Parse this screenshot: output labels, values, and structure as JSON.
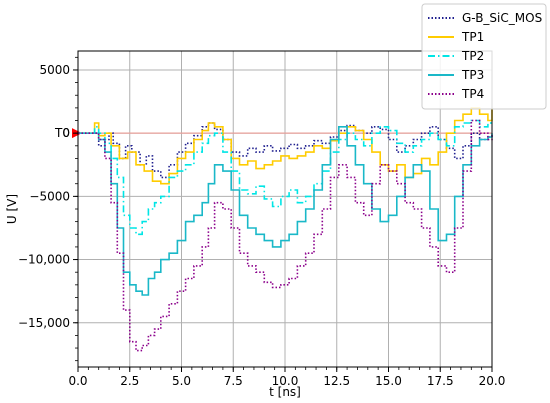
{
  "chart_data": {
    "type": "line",
    "xlabel": "t [ns]",
    "ylabel": "U [V]",
    "xlim": [
      0,
      20
    ],
    "ylim": [
      -18500,
      6500
    ],
    "xticks": [
      0,
      2.5,
      5,
      7.5,
      10,
      12.5,
      15,
      17.5,
      20
    ],
    "xtick_labels": [
      "0.0",
      "2.5",
      "5.0",
      "7.5",
      "10.0",
      "12.5",
      "15.0",
      "17.5",
      "20.0"
    ],
    "yticks": [
      5000,
      0,
      -5000,
      -10000,
      -15000
    ],
    "ytick_labels": [
      "5000",
      "0",
      "−5000",
      "−10,000",
      "−15,000"
    ],
    "grid": true,
    "legend_position": "top-right",
    "reference_line": {
      "y": 0,
      "label": "T0",
      "color": "#e8a09a",
      "marker_color": "#ff0000"
    },
    "series": [
      {
        "name": "G-B_SiC_MOS",
        "color": "#1f1f8f",
        "dash": "dotted",
        "x": [
          0,
          0.8,
          1.0,
          1.3,
          1.5,
          1.7,
          2.0,
          2.3,
          2.6,
          3.0,
          3.3,
          3.6,
          4.0,
          4.4,
          4.8,
          5.2,
          5.6,
          6.0,
          6.3,
          6.6,
          7.0,
          7.4,
          7.8,
          8.2,
          8.6,
          9.0,
          9.4,
          9.8,
          10.2,
          10.6,
          11.0,
          11.4,
          11.8,
          12.2,
          12.6,
          13.0,
          13.4,
          13.8,
          14.2,
          14.6,
          15.0,
          15.4,
          15.8,
          16.2,
          16.6,
          17.0,
          17.4,
          17.8,
          18.2,
          18.6,
          19.0,
          19.4,
          19.8,
          20.0
        ],
        "values": [
          0,
          0,
          -1000,
          -500,
          0,
          -800,
          -2000,
          -1000,
          -1500,
          -2500,
          -1800,
          -3000,
          -3500,
          -2500,
          -1500,
          -800,
          -200,
          500,
          800,
          300,
          -500,
          -1500,
          -1800,
          -1200,
          -1500,
          -1000,
          -1400,
          -1200,
          -900,
          -1200,
          -1000,
          -600,
          -800,
          -300,
          200,
          600,
          200,
          0,
          500,
          300,
          -500,
          -1500,
          -1000,
          -500,
          0,
          500,
          -500,
          -1200,
          -2000,
          -1000,
          0,
          -500,
          -300,
          0
        ]
      },
      {
        "name": "TP1",
        "color": "#ffcc00",
        "dash": "solid",
        "x": [
          0,
          0.8,
          1.0,
          1.3,
          1.6,
          2.0,
          2.4,
          2.8,
          3.2,
          3.6,
          4.0,
          4.4,
          4.8,
          5.2,
          5.6,
          6.0,
          6.3,
          6.6,
          7.0,
          7.4,
          7.8,
          8.2,
          8.6,
          9.0,
          9.4,
          9.8,
          10.2,
          10.6,
          11.0,
          11.4,
          11.8,
          12.2,
          12.6,
          13.0,
          13.4,
          13.8,
          14.2,
          14.6,
          15.0,
          15.4,
          15.8,
          16.2,
          16.6,
          17.0,
          17.4,
          17.8,
          18.2,
          18.6,
          19.0,
          19.4,
          19.8,
          20.0
        ],
        "values": [
          0,
          800,
          -200,
          0,
          -1000,
          -2000,
          -1500,
          -2500,
          -3000,
          -3800,
          -4000,
          -3200,
          -2000,
          -1500,
          -500,
          200,
          800,
          500,
          -500,
          -2000,
          -2500,
          -2200,
          -2800,
          -2500,
          -2200,
          -1800,
          -2000,
          -1800,
          -1500,
          -1000,
          -1200,
          -600,
          0,
          500,
          200,
          -500,
          -1500,
          -2500,
          -3000,
          -2500,
          -3500,
          -3200,
          -2000,
          -2500,
          -1500,
          0,
          1000,
          1500,
          2000,
          1500,
          1000,
          2000
        ]
      },
      {
        "name": "TP2",
        "color": "#00e5e5",
        "dash": "dashdot",
        "x": [
          0,
          0.8,
          1.0,
          1.3,
          1.6,
          1.9,
          2.2,
          2.5,
          2.8,
          3.1,
          3.4,
          3.7,
          4.0,
          4.4,
          4.8,
          5.2,
          5.6,
          6.0,
          6.3,
          6.6,
          7.0,
          7.4,
          7.8,
          8.2,
          8.6,
          9.0,
          9.4,
          9.8,
          10.2,
          10.6,
          11.0,
          11.4,
          11.8,
          12.2,
          12.6,
          13.0,
          13.4,
          13.8,
          14.2,
          14.6,
          15.0,
          15.4,
          15.8,
          16.2,
          16.6,
          17.0,
          17.4,
          17.8,
          18.2,
          18.6,
          19.0,
          19.4,
          19.8,
          20.0
        ],
        "values": [
          0,
          500,
          0,
          -800,
          -2000,
          -3500,
          -6500,
          -7500,
          -8000,
          -7000,
          -6000,
          -5500,
          -5000,
          -3500,
          -3000,
          -2500,
          -1500,
          -800,
          -200,
          0,
          -1500,
          -3000,
          -4500,
          -4800,
          -4200,
          -5200,
          -5800,
          -5000,
          -4500,
          -5500,
          -5000,
          -4000,
          -3000,
          -1500,
          -500,
          0,
          -500,
          -1000,
          0,
          500,
          200,
          -800,
          -1500,
          -1000,
          -500,
          0,
          -500,
          -1000,
          500,
          800,
          1000,
          500,
          800,
          1000
        ]
      },
      {
        "name": "TP3",
        "color": "#1ab8c8",
        "dash": "solid",
        "x": [
          0,
          0.8,
          1.0,
          1.3,
          1.6,
          1.9,
          2.2,
          2.5,
          2.8,
          3.1,
          3.4,
          3.7,
          4.0,
          4.4,
          4.8,
          5.2,
          5.6,
          6.0,
          6.3,
          6.6,
          7.0,
          7.4,
          7.8,
          8.2,
          8.6,
          9.0,
          9.4,
          9.8,
          10.2,
          10.6,
          11.0,
          11.4,
          11.8,
          12.2,
          12.6,
          13.0,
          13.4,
          13.8,
          14.2,
          14.6,
          15.0,
          15.4,
          15.8,
          16.2,
          16.6,
          17.0,
          17.4,
          17.8,
          18.2,
          18.6,
          19.0,
          19.4,
          19.8,
          20.0
        ],
        "values": [
          0,
          0,
          -500,
          -1500,
          -4000,
          -7500,
          -11000,
          -12000,
          -12500,
          -12800,
          -11500,
          -11000,
          -10000,
          -9500,
          -8500,
          -7000,
          -6500,
          -5500,
          -4000,
          -2500,
          -3000,
          -4500,
          -6500,
          -7500,
          -8000,
          -8500,
          -9000,
          -8500,
          -8000,
          -7000,
          -6000,
          -4500,
          -2500,
          -500,
          500,
          -1000,
          -2500,
          -4000,
          -6000,
          -7000,
          -6500,
          -5000,
          -3500,
          -2500,
          -3000,
          -6000,
          -8500,
          -8000,
          -5000,
          -2500,
          -1000,
          -500,
          -300,
          0
        ]
      },
      {
        "name": "TP4",
        "color": "#8b008b",
        "dash": "dotted",
        "x": [
          0,
          0.8,
          1.0,
          1.3,
          1.6,
          1.9,
          2.2,
          2.5,
          2.8,
          3.1,
          3.4,
          3.7,
          4.0,
          4.4,
          4.8,
          5.2,
          5.6,
          6.0,
          6.3,
          6.6,
          7.0,
          7.4,
          7.8,
          8.2,
          8.6,
          9.0,
          9.4,
          9.8,
          10.2,
          10.6,
          11.0,
          11.4,
          11.8,
          12.2,
          12.6,
          13.0,
          13.4,
          13.8,
          14.2,
          14.6,
          15.0,
          15.4,
          15.8,
          16.2,
          16.6,
          17.0,
          17.4,
          17.8,
          18.2,
          18.6,
          19.0,
          19.4,
          19.8,
          20.0
        ],
        "values": [
          0,
          0,
          -500,
          -2000,
          -5500,
          -9500,
          -14000,
          -16500,
          -17200,
          -16800,
          -16000,
          -15500,
          -14500,
          -13500,
          -12500,
          -11500,
          -10500,
          -9000,
          -7500,
          -5500,
          -6000,
          -7500,
          -9500,
          -10500,
          -11000,
          -11800,
          -12200,
          -12000,
          -11500,
          -10500,
          -9500,
          -8000,
          -6000,
          -3500,
          -2500,
          -3500,
          -5500,
          -6500,
          -4000,
          -2500,
          -3000,
          -4000,
          -5500,
          -6000,
          -7500,
          -9000,
          -10500,
          -11000,
          -7500,
          -3000,
          1000,
          0,
          -500,
          0
        ]
      }
    ]
  }
}
